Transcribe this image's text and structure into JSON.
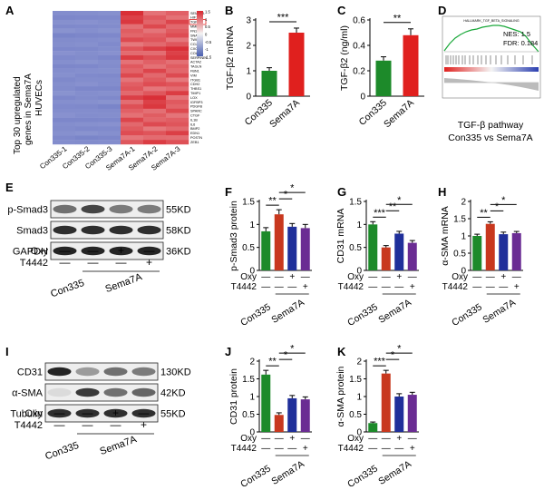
{
  "panel_letters": {
    "A": "A",
    "B": "B",
    "C": "C",
    "D": "D",
    "E": "E",
    "F": "F",
    "G": "G",
    "H": "H",
    "I": "I",
    "J": "J",
    "K": "K"
  },
  "heatmap": {
    "ylabel_1": "Top 30 upregulated",
    "ylabel_2": "genes in Sema7A",
    "ylabel_3": "HUVECs",
    "columns": [
      "Con335-1",
      "Con335-2",
      "Con335-3",
      "Sema7A-1",
      "Sema7A-2",
      "Sema7A-3"
    ],
    "scale_ticks": [
      "1.5",
      "1",
      "0.5",
      "0",
      "-0.5",
      "-1",
      "-1.5"
    ],
    "scale_colors": [
      "#d7262e",
      "#f4f4f4",
      "#4a5fb0"
    ],
    "genes": [
      "SEMA7A",
      "HIF1",
      "TGFB2",
      "MMP9",
      "FN1",
      "SNAI1",
      "TWIST1",
      "CCL2",
      "CXCL8",
      "COL1A1",
      "SERPINE1",
      "ACTA2",
      "TAGLN",
      "FBN1",
      "VIM",
      "ITGB1",
      "CDH2",
      "THBS1",
      "TIMP1",
      "LOX",
      "IGFBP3",
      "PDGFB",
      "SPARC",
      "CTGF",
      "IL1B",
      "IL6",
      "BMP2",
      "EDN1",
      "POSTN",
      "ZEB1"
    ],
    "highlight_gene": "TGFB2",
    "con_intensity": [
      0.75,
      0.8,
      0.72,
      0.78,
      0.7,
      0.82,
      0.76,
      0.74,
      0.79,
      0.71,
      0.77,
      0.73,
      0.8,
      0.75,
      0.72,
      0.78,
      0.74,
      0.76,
      0.7,
      0.79,
      0.73,
      0.77,
      0.75,
      0.71,
      0.8,
      0.74,
      0.76,
      0.72,
      0.78,
      0.75
    ],
    "sema_intensity": [
      0.95,
      0.85,
      0.9,
      0.6,
      0.7,
      0.65,
      0.8,
      0.55,
      0.75,
      0.62,
      0.88,
      0.58,
      0.72,
      0.66,
      0.81,
      0.57,
      0.69,
      0.74,
      0.63,
      0.86,
      0.61,
      0.77,
      0.68,
      0.59,
      0.83,
      0.64,
      0.71,
      0.79,
      0.56,
      0.73
    ]
  },
  "bar_panels": [
    {
      "id": "B",
      "ylabel": "TGF-β2 mRNA",
      "ymax": 3,
      "yticks": [
        0,
        1,
        2,
        3
      ],
      "categories": [
        "Con335",
        "Sema7A"
      ],
      "values": [
        1.0,
        2.5
      ],
      "errors": [
        0.12,
        0.18
      ],
      "colors": [
        "#1d8a2a",
        "#e0201e"
      ],
      "sig": [
        {
          "from": 0,
          "to": 1,
          "text": "***"
        }
      ]
    },
    {
      "id": "C",
      "ylabel": "TGF-β2 (ng/ml)",
      "ymax": 0.6,
      "yticks": [
        0.0,
        0.2,
        0.4,
        0.6
      ],
      "categories": [
        "Con335",
        "Sema7A"
      ],
      "values": [
        0.28,
        0.48
      ],
      "errors": [
        0.03,
        0.05
      ],
      "colors": [
        "#1d8a2a",
        "#e0201e"
      ],
      "sig": [
        {
          "from": 0,
          "to": 1,
          "text": "**"
        }
      ]
    },
    {
      "id": "F",
      "ylabel": "p-Smad3 protein",
      "ymax": 1.5,
      "yticks": [
        0.0,
        0.5,
        1.0,
        1.5
      ],
      "categories": [
        "Con335",
        "",
        "",
        "Sema7A"
      ],
      "values": [
        0.85,
        1.22,
        0.95,
        0.92
      ],
      "errors": [
        0.08,
        0.1,
        0.07,
        0.08
      ],
      "colors": [
        "#1d8a2a",
        "#c8381e",
        "#1f2f9a",
        "#6a2c93"
      ],
      "sig": [
        {
          "from": 0,
          "to": 1,
          "text": "**"
        },
        {
          "from": 1,
          "to": 2,
          "text": "*"
        },
        {
          "from": 1,
          "to": 3,
          "text": "*"
        }
      ],
      "oxy": [
        "—",
        "—",
        "+",
        "—"
      ],
      "t4442": [
        "—",
        "—",
        "—",
        "+"
      ]
    },
    {
      "id": "G",
      "ylabel": "CD31 mRNA",
      "ymax": 1.5,
      "yticks": [
        0.0,
        0.5,
        1.0,
        1.5
      ],
      "categories": [
        "Con335",
        "",
        "",
        "Sema7A"
      ],
      "values": [
        1.0,
        0.5,
        0.8,
        0.6
      ],
      "errors": [
        0.06,
        0.04,
        0.05,
        0.05
      ],
      "colors": [
        "#1d8a2a",
        "#c8381e",
        "#1f2f9a",
        "#6a2c93"
      ],
      "sig": [
        {
          "from": 0,
          "to": 1,
          "text": "***"
        },
        {
          "from": 1,
          "to": 2,
          "text": "**"
        },
        {
          "from": 1,
          "to": 3,
          "text": "*"
        }
      ],
      "oxy": [
        "—",
        "—",
        "+",
        "—"
      ],
      "t4442": [
        "—",
        "—",
        "—",
        "+"
      ]
    },
    {
      "id": "H",
      "ylabel": "α-SMA mRNA",
      "ymax": 2.0,
      "yticks": [
        0.0,
        0.5,
        1.0,
        1.5,
        2.0
      ],
      "categories": [
        "Con335",
        "",
        "",
        "Sema7A"
      ],
      "values": [
        1.0,
        1.35,
        1.05,
        1.08
      ],
      "errors": [
        0.05,
        0.06,
        0.06,
        0.05
      ],
      "colors": [
        "#1d8a2a",
        "#c8381e",
        "#1f2f9a",
        "#6a2c93"
      ],
      "sig": [
        {
          "from": 0,
          "to": 1,
          "text": "**"
        },
        {
          "from": 1,
          "to": 2,
          "text": "*"
        },
        {
          "from": 1,
          "to": 3,
          "text": "*"
        }
      ],
      "oxy": [
        "—",
        "—",
        "+",
        "—"
      ],
      "t4442": [
        "—",
        "—",
        "—",
        "+"
      ]
    },
    {
      "id": "J",
      "ylabel": "CD31 protein",
      "ymax": 2.0,
      "yticks": [
        0.0,
        0.5,
        1.0,
        1.5,
        2.0
      ],
      "categories": [
        "Con335",
        "",
        "",
        "Sema7A"
      ],
      "values": [
        1.62,
        0.48,
        0.95,
        0.92
      ],
      "errors": [
        0.12,
        0.06,
        0.08,
        0.07
      ],
      "colors": [
        "#1d8a2a",
        "#c8381e",
        "#1f2f9a",
        "#6a2c93"
      ],
      "sig": [
        {
          "from": 0,
          "to": 1,
          "text": "**"
        },
        {
          "from": 1,
          "to": 2,
          "text": "*"
        },
        {
          "from": 1,
          "to": 3,
          "text": "*"
        }
      ],
      "oxy": [
        "—",
        "—",
        "+",
        "—"
      ],
      "t4442": [
        "—",
        "—",
        "—",
        "+"
      ]
    },
    {
      "id": "K",
      "ylabel": "α-SMA protein",
      "ymax": 2.0,
      "yticks": [
        0.0,
        0.5,
        1.0,
        1.5,
        2.0
      ],
      "categories": [
        "Con335",
        "",
        "",
        "Sema7A"
      ],
      "values": [
        0.25,
        1.65,
        1.0,
        1.05
      ],
      "errors": [
        0.03,
        0.09,
        0.08,
        0.07
      ],
      "colors": [
        "#1d8a2a",
        "#c8381e",
        "#1f2f9a",
        "#6a2c93"
      ],
      "sig": [
        {
          "from": 0,
          "to": 1,
          "text": "***"
        },
        {
          "from": 1,
          "to": 2,
          "text": "*"
        },
        {
          "from": 1,
          "to": 3,
          "text": "*"
        }
      ],
      "oxy": [
        "—",
        "—",
        "+",
        "—"
      ],
      "t4442": [
        "—",
        "—",
        "—",
        "+"
      ]
    }
  ],
  "gsea": {
    "title": "HALLMARK_TGF_BETA_SIGNALING",
    "nes": "NES: 1.5",
    "fdr": "FDR: 0.184",
    "caption_1": "TGF-β pathway",
    "caption_2": "Con335 vs Sema7A"
  },
  "blot_E": {
    "rows": [
      {
        "label": "p-Smad3",
        "kd": "55KD",
        "intensity": [
          0.55,
          0.75,
          0.5,
          0.5
        ]
      },
      {
        "label": "Smad3",
        "kd": "58KD",
        "intensity": [
          0.85,
          0.85,
          0.85,
          0.85
        ]
      },
      {
        "label": "GAPDH",
        "kd": "36KD",
        "intensity": [
          0.9,
          0.9,
          0.9,
          0.9
        ]
      }
    ],
    "oxy_label": "Oxy",
    "t4442_label": "T4442",
    "oxy": [
      "—",
      "—",
      "+",
      "—"
    ],
    "t4442": [
      "—",
      "—",
      "—",
      "+"
    ],
    "group_1": "Con335",
    "group_2": "Sema7A"
  },
  "blot_I": {
    "rows": [
      {
        "label": "CD31",
        "kd": "130KD",
        "intensity": [
          0.9,
          0.35,
          0.55,
          0.5
        ]
      },
      {
        "label": "α-SMA",
        "kd": "42KD",
        "intensity": [
          0.05,
          0.8,
          0.55,
          0.6
        ]
      },
      {
        "label": "Tubulin",
        "kd": "55KD",
        "intensity": [
          0.85,
          0.85,
          0.85,
          0.85
        ]
      }
    ],
    "oxy_label": "Oxy",
    "t4442_label": "T4442",
    "oxy": [
      "—",
      "—",
      "+",
      "—"
    ],
    "t4442": [
      "—",
      "—",
      "—",
      "+"
    ],
    "group_1": "Con335",
    "group_2": "Sema7A"
  },
  "treat_labels": {
    "oxy": "Oxy",
    "t4442": "T4442"
  }
}
